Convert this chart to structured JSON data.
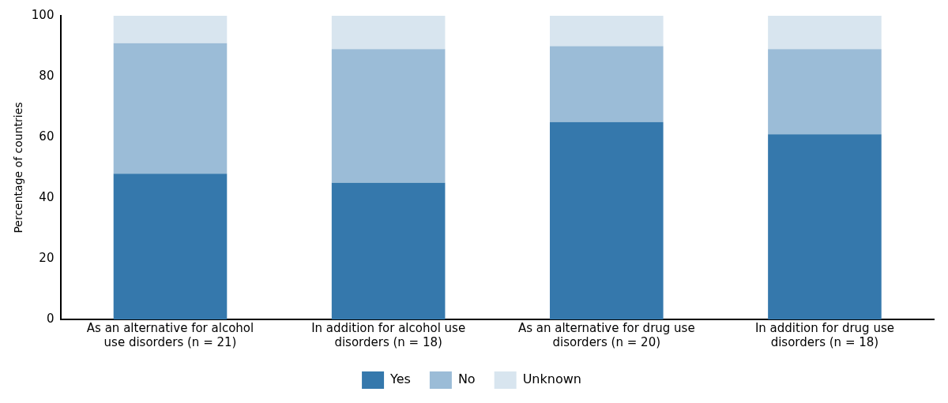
{
  "chart_data": {
    "type": "bar",
    "stacked": true,
    "ylabel": "Percentage of countries",
    "categories": [
      "As an alternative for alcohol use disorders (n = 21)",
      "In addition for alcohol use disorders (n = 18)",
      "As an alternative for drug use disorders (n = 20)",
      "In addition for drug use disorders (n = 18)"
    ],
    "series": [
      {
        "name": "Yes",
        "color": "#3578ac",
        "values": [
          48,
          45,
          65,
          61
        ]
      },
      {
        "name": "No",
        "color": "#9bbcd7",
        "values": [
          43,
          44,
          25,
          28
        ]
      },
      {
        "name": "Unknown",
        "color": "#d8e5ef",
        "values": [
          9,
          11,
          10,
          11
        ]
      }
    ],
    "ylim": [
      0,
      100
    ],
    "yticks": [
      0,
      20,
      40,
      60,
      80,
      100
    ],
    "grid": false,
    "legend": "bottom"
  }
}
